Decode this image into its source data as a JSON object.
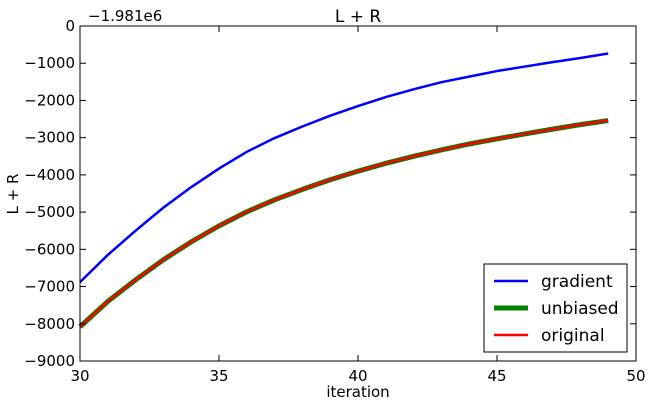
{
  "chart_data": {
    "type": "line",
    "title": "L + R",
    "xlabel": "iteration",
    "ylabel": "L + R",
    "offset_text": "−1.981e6",
    "xlim": [
      30,
      50
    ],
    "ylim": [
      -9000,
      0
    ],
    "xticks": [
      30,
      35,
      40,
      45,
      50
    ],
    "yticks": [
      0,
      -1000,
      -2000,
      -3000,
      -4000,
      -5000,
      -6000,
      -7000,
      -8000,
      -9000
    ],
    "xtick_labels": [
      "30",
      "35",
      "40",
      "45",
      "50"
    ],
    "ytick_labels": [
      "0",
      "−1000",
      "−2000",
      "−3000",
      "−4000",
      "−5000",
      "−6000",
      "−7000",
      "−8000",
      "−9000"
    ],
    "grid": false,
    "legend_position": "bottom-right",
    "x": [
      30,
      31,
      32,
      33,
      34,
      35,
      36,
      37,
      38,
      39,
      40,
      41,
      42,
      43,
      44,
      45,
      46,
      47,
      48,
      49
    ],
    "series": [
      {
        "name": "gradient",
        "color": "#0000ff",
        "line_width": "normal",
        "values": [
          -6880,
          -6150,
          -5500,
          -4880,
          -4330,
          -3830,
          -3380,
          -3010,
          -2700,
          -2410,
          -2150,
          -1910,
          -1700,
          -1510,
          -1360,
          -1210,
          -1090,
          -970,
          -860,
          -740
        ]
      },
      {
        "name": "unbiased",
        "color": "#007f00",
        "line_width": "thick",
        "values": [
          -8080,
          -7400,
          -6820,
          -6280,
          -5800,
          -5370,
          -4990,
          -4670,
          -4390,
          -4130,
          -3900,
          -3690,
          -3500,
          -3330,
          -3170,
          -3030,
          -2900,
          -2770,
          -2650,
          -2540
        ]
      },
      {
        "name": "original",
        "color": "#ff0000",
        "line_width": "normal",
        "values": [
          -8080,
          -7400,
          -6820,
          -6280,
          -5800,
          -5370,
          -4990,
          -4670,
          -4390,
          -4130,
          -3900,
          -3690,
          -3500,
          -3330,
          -3170,
          -3030,
          -2900,
          -2770,
          -2650,
          -2540
        ]
      }
    ]
  }
}
